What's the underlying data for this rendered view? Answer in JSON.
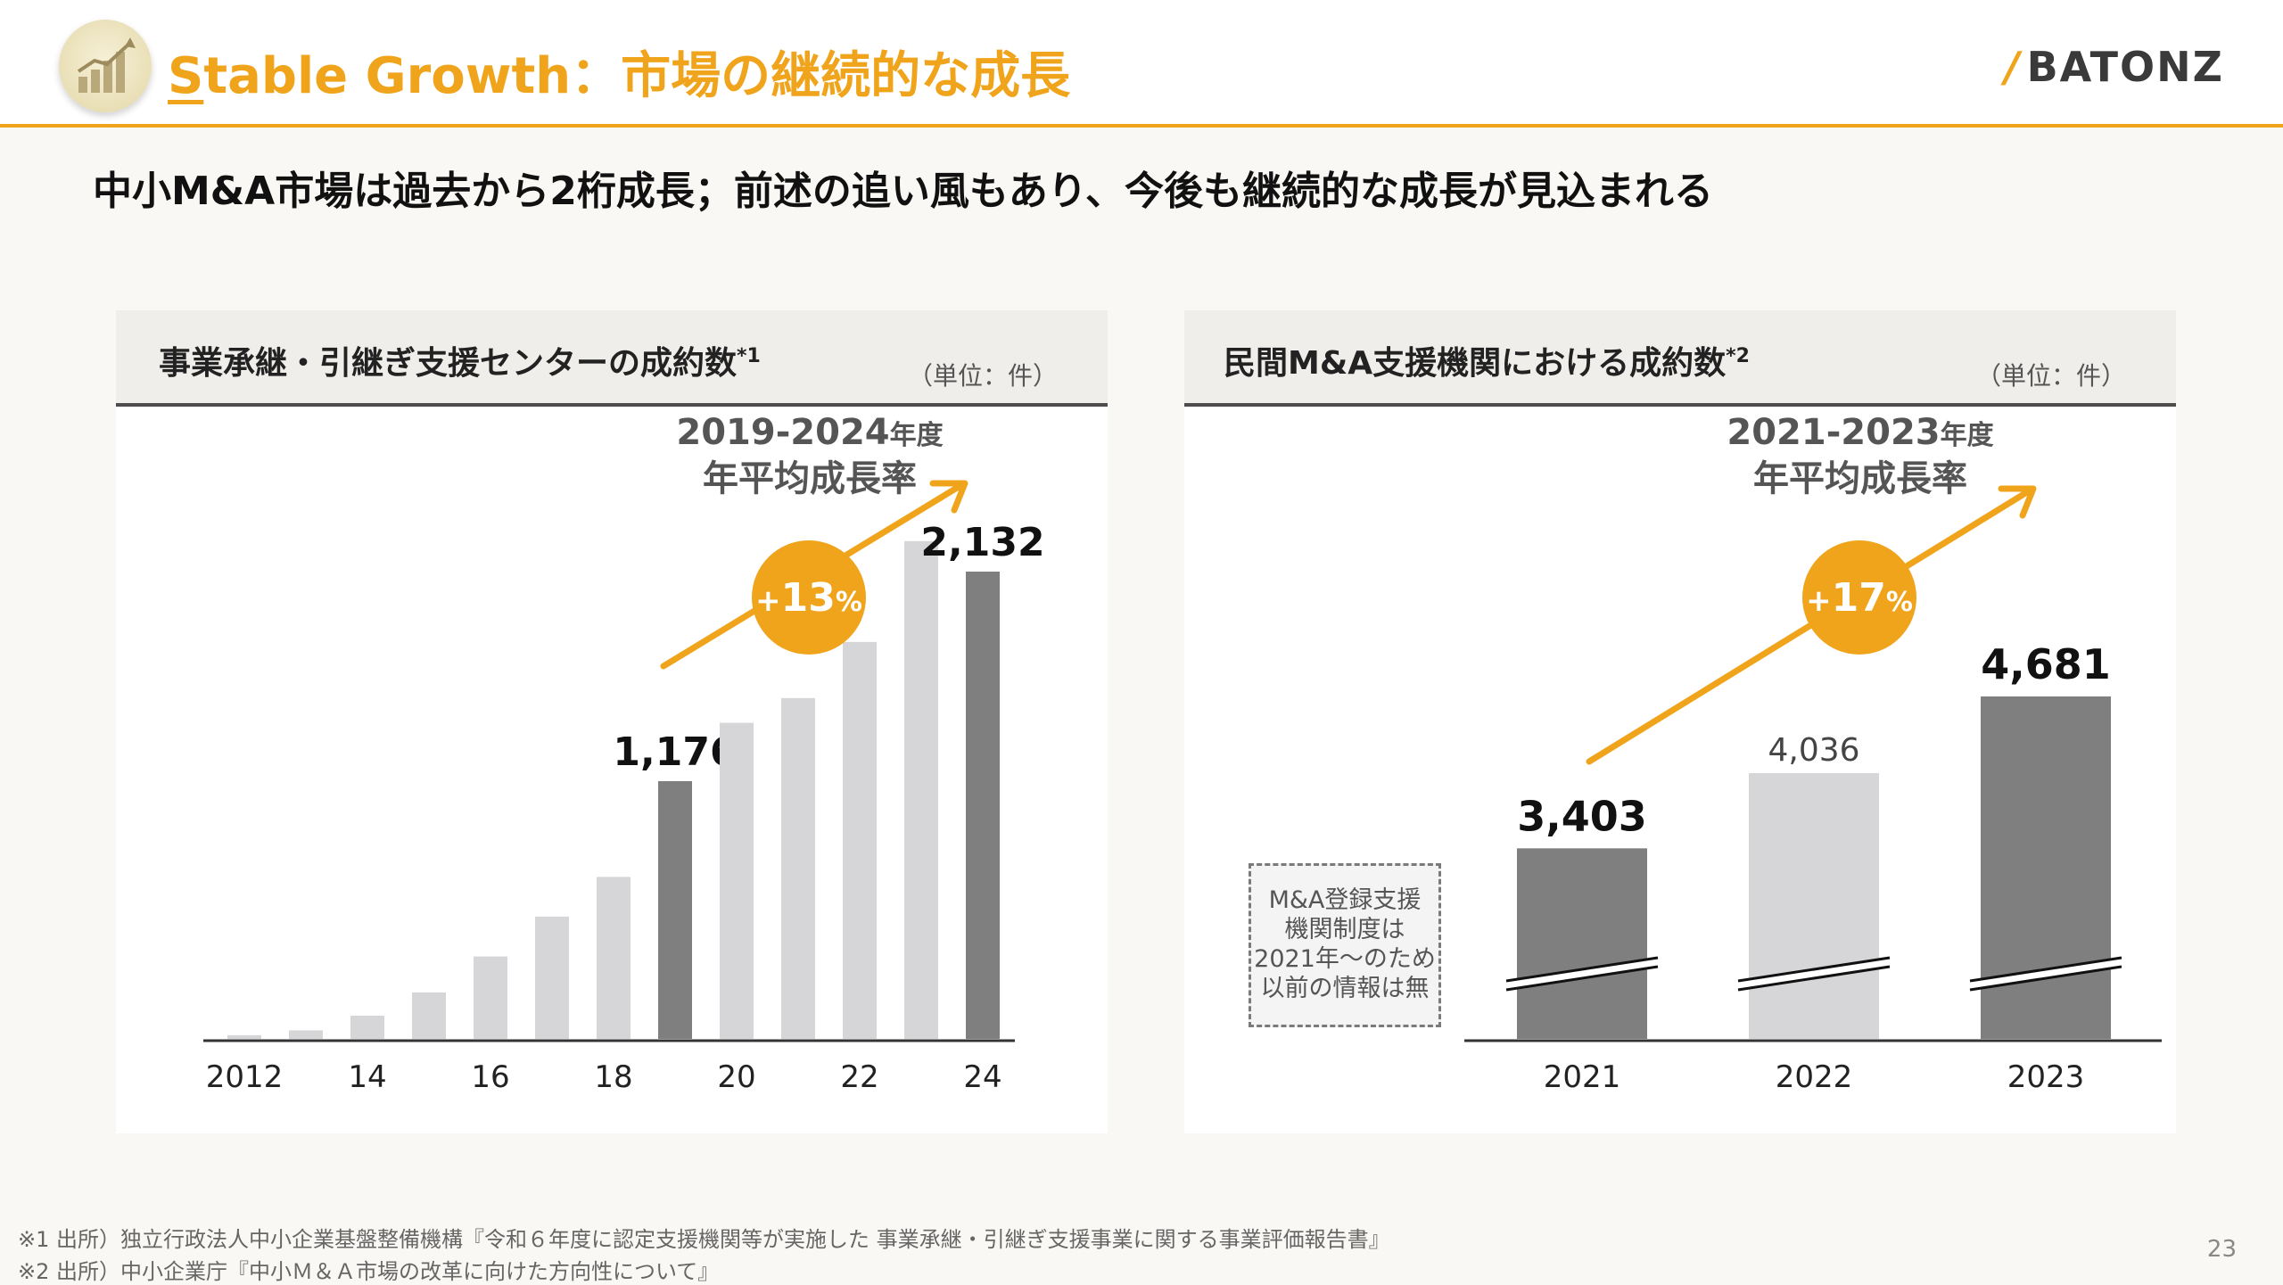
{
  "header": {
    "title": "Stable Growth：市場の継続的な成長",
    "title_first": "S",
    "title_rest": "table Growth：市場の継続的な成長",
    "brand": "BATONZ",
    "logo_icon": "bar-chart-growth-icon"
  },
  "headline": "中小M&A市場は過去から2桁成長；前述の追い風もあり、今後も継続的な成長が見込まれる",
  "colors": {
    "accent": "#f0a41c",
    "bar_light": "#d6d6d8",
    "bar_dark": "#7f7f7f",
    "text": "#1a1a1a"
  },
  "left_panel": {
    "title": "事業承継・引継ぎ支援センターの成約数",
    "title_note": "*1",
    "unit": "（単位：件）",
    "growth_period": "2019-2024",
    "growth_period_suffix": "年度",
    "growth_label": "年平均成長率",
    "growth_rate_sign": "+",
    "growth_rate_value": "13",
    "growth_rate_unit": "%"
  },
  "right_panel": {
    "title": "民間M&A支援機関における成約数",
    "title_note": "*2",
    "unit": "（単位：件）",
    "growth_period": "2021-2023",
    "growth_period_suffix": "年度",
    "growth_label": "年平均成長率",
    "growth_rate_sign": "+",
    "growth_rate_value": "17",
    "growth_rate_unit": "%",
    "note_lines": [
      "M&A登録支援",
      "機関制度は",
      "2021年～のため",
      "以前の情報は無"
    ]
  },
  "chart_data": [
    {
      "type": "bar",
      "title": "事業承継・引継ぎ支援センターの成約数*1",
      "unit": "（単位：件）",
      "x": [
        2012,
        2013,
        2014,
        2015,
        2016,
        2017,
        2018,
        2019,
        2020,
        2021,
        2022,
        2023,
        2024
      ],
      "tick_labels": [
        "2012",
        "",
        "14",
        "",
        "16",
        "",
        "18",
        "",
        "20",
        "",
        "22",
        "",
        "24"
      ],
      "values": [
        17,
        39,
        106,
        212,
        376,
        558,
        739,
        1176,
        1442,
        1555,
        1811,
        2271,
        2132
      ],
      "highlighted": [
        2019,
        2024
      ],
      "data_labels": {
        "2019": "1,176",
        "2024": "2,132"
      },
      "annotation": "2019-2024年度 年平均成長率 +13%",
      "ylim": [
        0,
        2400
      ]
    },
    {
      "type": "bar",
      "title": "民間M&A支援機関における成約数*2",
      "unit": "（単位：件）",
      "categories": [
        "2021",
        "2022",
        "2023"
      ],
      "values": [
        3403,
        4036,
        4681
      ],
      "data_labels": [
        "3,403",
        "4,036",
        "4,681"
      ],
      "highlighted": [
        "2021",
        "2023"
      ],
      "axis_break": true,
      "annotation": "2021-2023年度 年平均成長率 +17%"
    }
  ],
  "footnotes": [
    "※1 出所）独立行政法人中小企業基盤整備機構『令和６年度に認定支援機関等が実施した 事業承継・引継ぎ支援事業に関する事業評価報告書』",
    "※2 出所）中小企業庁『中小Ｍ＆Ａ市場の改革に向けた方向性について』"
  ],
  "page_number": "23"
}
